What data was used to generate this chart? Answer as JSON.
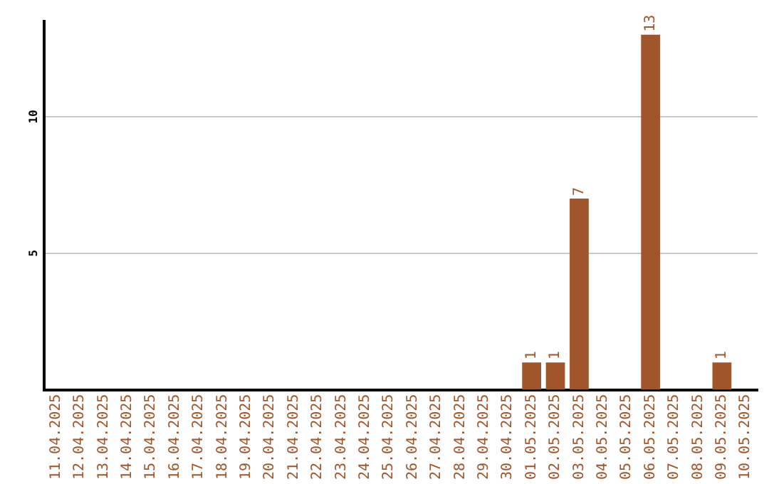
{
  "chart_data": {
    "type": "bar",
    "categories": [
      "11.04.2025",
      "12.04.2025",
      "13.04.2025",
      "14.04.2025",
      "15.04.2025",
      "16.04.2025",
      "17.04.2025",
      "18.04.2025",
      "19.04.2025",
      "20.04.2025",
      "21.04.2025",
      "22.04.2025",
      "23.04.2025",
      "24.04.2025",
      "25.04.2025",
      "26.04.2025",
      "27.04.2025",
      "28.04.2025",
      "29.04.2025",
      "30.04.2025",
      "01.05.2025",
      "02.05.2025",
      "03.05.2025",
      "04.05.2025",
      "05.05.2025",
      "06.05.2025",
      "07.05.2025",
      "08.05.2025",
      "09.05.2025",
      "10.05.2025"
    ],
    "values": [
      0,
      0,
      0,
      0,
      0,
      0,
      0,
      0,
      0,
      0,
      0,
      0,
      0,
      0,
      0,
      0,
      0,
      0,
      0,
      0,
      1,
      1,
      7,
      0,
      0,
      13,
      0,
      0,
      1,
      0
    ],
    "value_labels": [
      null,
      null,
      null,
      null,
      null,
      null,
      null,
      null,
      null,
      null,
      null,
      null,
      null,
      null,
      null,
      null,
      null,
      null,
      null,
      null,
      "1",
      "1",
      "7",
      null,
      null,
      "13",
      null,
      null,
      "1",
      null
    ],
    "color": "#a0552a",
    "ylim": [
      0,
      13.5
    ],
    "yticks": [
      5,
      10
    ],
    "grid": "y",
    "legend": false
  }
}
